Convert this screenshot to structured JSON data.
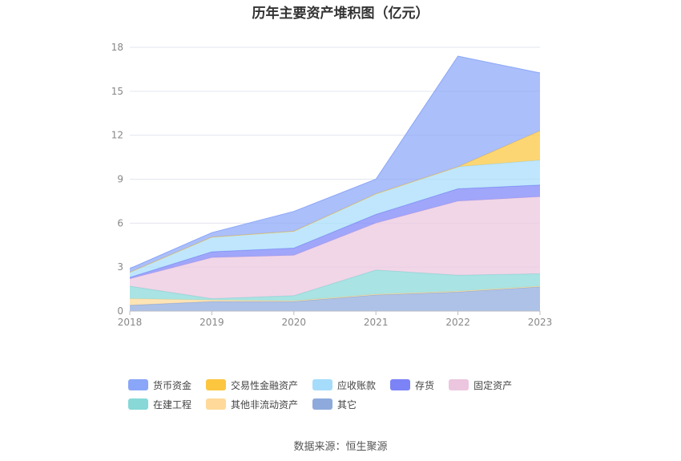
{
  "title": "历年主要资产堆积图（亿元）",
  "source": "数据来源：恒生聚源",
  "chart_data": {
    "type": "area",
    "stacked": true,
    "title": "历年主要资产堆积图（亿元）",
    "categories": [
      "2018",
      "2019",
      "2020",
      "2021",
      "2022",
      "2023"
    ],
    "ylim": [
      0,
      18
    ],
    "yticks": [
      0,
      3,
      6,
      9,
      12,
      15,
      18
    ],
    "grid": true,
    "legend_position": "bottom",
    "series": [
      {
        "name": "其它",
        "color": "#8eaadc",
        "values": [
          0.4,
          0.65,
          0.65,
          1.1,
          1.3,
          1.65
        ]
      },
      {
        "name": "其他非流动资产",
        "color": "#ffd99a",
        "values": [
          0.45,
          0.1,
          0.05,
          0.05,
          0.05,
          0.05
        ]
      },
      {
        "name": "在建工程",
        "color": "#88d8d8",
        "values": [
          0.85,
          0.1,
          0.35,
          1.65,
          1.1,
          0.85
        ]
      },
      {
        "name": "固定资产",
        "color": "#ebc6de",
        "values": [
          0.5,
          2.8,
          2.75,
          3.2,
          5.05,
          5.25
        ]
      },
      {
        "name": "存货",
        "color": "#7c83f6",
        "values": [
          0.1,
          0.4,
          0.5,
          0.6,
          0.85,
          0.8
        ]
      },
      {
        "name": "应收账款",
        "color": "#a6dcfb",
        "values": [
          0.35,
          1.0,
          1.15,
          1.4,
          1.5,
          1.7
        ]
      },
      {
        "name": "交易性金融资产",
        "color": "#fcc63f",
        "values": [
          0,
          0,
          0,
          0,
          0,
          2.0
        ]
      },
      {
        "name": "货币资金",
        "color": "#8aa6f8",
        "values": [
          0.25,
          0.3,
          1.35,
          1.0,
          7.55,
          3.95
        ]
      }
    ]
  },
  "legend": [
    {
      "label": "货币资金",
      "color": "#8aa6f8"
    },
    {
      "label": "交易性金融资产",
      "color": "#fcc63f"
    },
    {
      "label": "应收账款",
      "color": "#a6dcfb"
    },
    {
      "label": "存货",
      "color": "#7c83f6"
    },
    {
      "label": "固定资产",
      "color": "#ebc6de"
    },
    {
      "label": "在建工程",
      "color": "#88d8d8"
    },
    {
      "label": "其他非流动资产",
      "color": "#ffd99a"
    },
    {
      "label": "其它",
      "color": "#8eaadc"
    }
  ]
}
